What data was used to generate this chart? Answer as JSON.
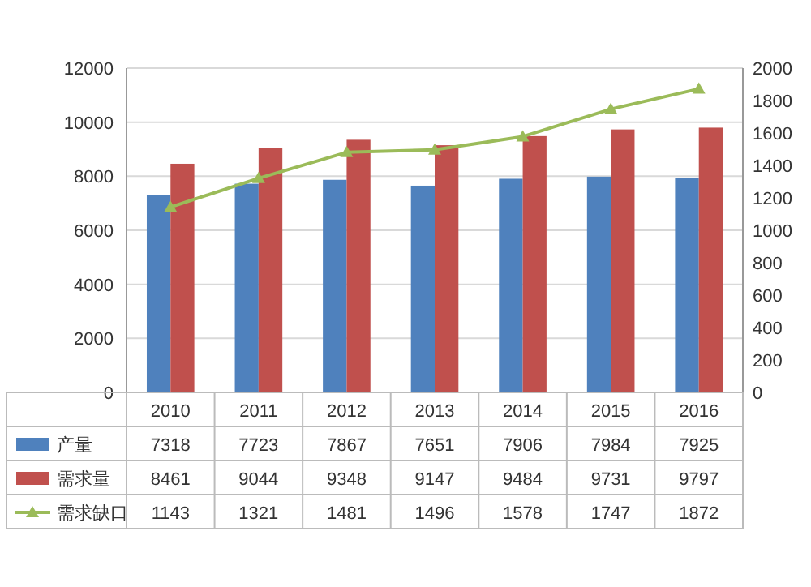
{
  "chart_data": {
    "type": "bar",
    "categories": [
      "2010",
      "2011",
      "2012",
      "2013",
      "2014",
      "2015",
      "2016"
    ],
    "series": [
      {
        "name": "产量",
        "color": "#4f81bd",
        "values": [
          7318,
          7723,
          7867,
          7651,
          7906,
          7984,
          7925
        ]
      },
      {
        "name": "需求量",
        "color": "#c0504d",
        "values": [
          8461,
          9044,
          9348,
          9147,
          9484,
          9731,
          9797
        ]
      },
      {
        "name": "需求缺口",
        "type": "line",
        "axis": "y2",
        "marker": "triangle",
        "color": "#9bbb59",
        "values": [
          1143,
          1321,
          1481,
          1496,
          1578,
          1747,
          1872
        ]
      }
    ],
    "ylim": [
      0,
      12000
    ],
    "yticks": [
      0,
      2000,
      4000,
      6000,
      8000,
      10000,
      12000
    ],
    "y2lim": [
      0,
      2000
    ],
    "y2ticks": [
      0,
      200,
      400,
      600,
      800,
      1000,
      1200,
      1400,
      1600,
      1800,
      2000
    ],
    "grid": "y",
    "legend": "bottom",
    "data_labels": true
  }
}
